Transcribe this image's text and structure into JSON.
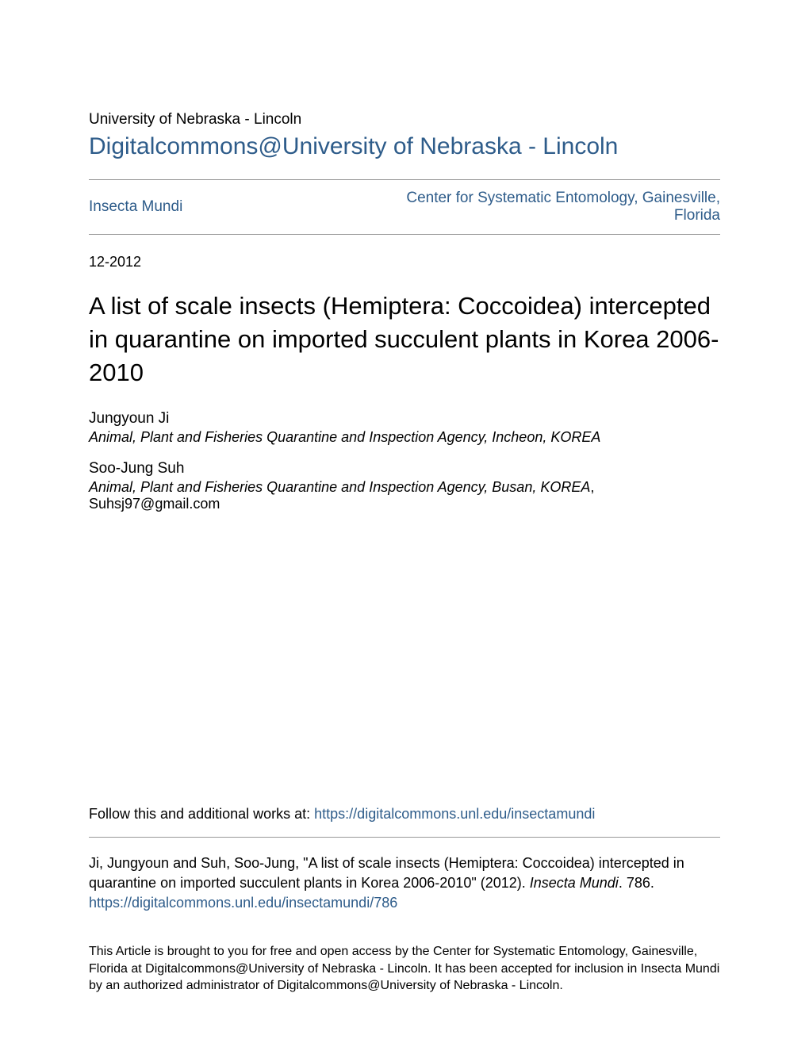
{
  "header": {
    "institution": "University of Nebraska - Lincoln",
    "site_title": "Digitalcommons@University of Nebraska - Lincoln"
  },
  "nav": {
    "left": "Insecta Mundi",
    "right": "Center for Systematic Entomology, Gainesville, Florida"
  },
  "article": {
    "date": "12-2012",
    "title": "A list of scale insects (Hemiptera: Coccoidea) intercepted in quarantine on imported succulent plants in Korea 2006-2010"
  },
  "authors": [
    {
      "name": "Jungyoun Ji",
      "affiliation": "Animal, Plant and Fisheries Quarantine and Inspection Agency, Incheon, KOREA",
      "email": ""
    },
    {
      "name": "Soo-Jung Suh",
      "affiliation": "Animal, Plant and Fisheries Quarantine and Inspection Agency, Busan, KOREA",
      "email": ", Suhsj97@gmail.com"
    }
  ],
  "follow": {
    "prefix": "Follow this and additional works at: ",
    "link_text": "https://digitalcommons.unl.edu/insectamundi"
  },
  "citation": {
    "text_before": "Ji, Jungyoun and Suh, Soo-Jung, \"A list of scale insects (Hemiptera: Coccoidea) intercepted in quarantine on imported succulent plants in Korea 2006-2010\" (2012). ",
    "journal": "Insecta Mundi",
    "text_after": ". 786.",
    "link": "https://digitalcommons.unl.edu/insectamundi/786"
  },
  "disclaimer": "This Article is brought to you for free and open access by the Center for Systematic Entomology, Gainesville, Florida at Digitalcommons@University of Nebraska - Lincoln. It has been accepted for inclusion in Insecta Mundi by an authorized administrator of Digitalcommons@University of Nebraska - Lincoln.",
  "colors": {
    "link": "#2e5c8a",
    "text": "#000000",
    "rule": "#999999",
    "background": "#ffffff"
  }
}
